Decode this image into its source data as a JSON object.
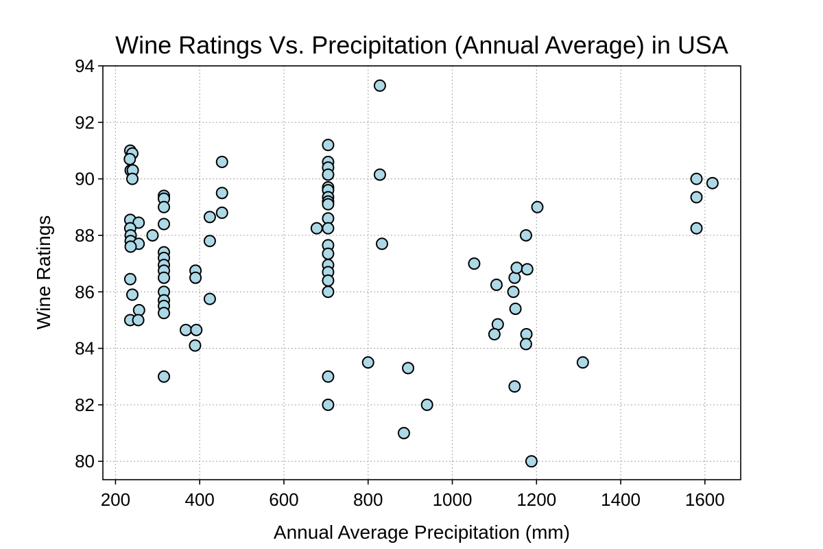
{
  "chart_data": {
    "type": "scatter",
    "title": "Wine Ratings Vs. Precipitation (Annual Average) in USA",
    "xlabel": "Annual Average Precipitation (mm)",
    "ylabel": "Wine Ratings",
    "xlim": [
      170,
      1685
    ],
    "ylim": [
      79.35,
      94
    ],
    "xticks": [
      200,
      400,
      600,
      800,
      1000,
      1200,
      1400,
      1600
    ],
    "yticks": [
      80,
      82,
      84,
      86,
      88,
      90,
      92,
      94
    ],
    "grid": true,
    "marker_color": "#add8e6",
    "marker_edge_color": "#000000",
    "points": [
      {
        "x": 235,
        "y": 91.0
      },
      {
        "x": 240,
        "y": 90.9
      },
      {
        "x": 234,
        "y": 90.7
      },
      {
        "x": 236,
        "y": 90.3
      },
      {
        "x": 241,
        "y": 90.3
      },
      {
        "x": 240,
        "y": 90.0
      },
      {
        "x": 235,
        "y": 88.55
      },
      {
        "x": 255,
        "y": 88.45
      },
      {
        "x": 235,
        "y": 88.25
      },
      {
        "x": 236,
        "y": 88.0
      },
      {
        "x": 236,
        "y": 87.8
      },
      {
        "x": 255,
        "y": 87.7
      },
      {
        "x": 236,
        "y": 87.6
      },
      {
        "x": 235,
        "y": 86.45
      },
      {
        "x": 240,
        "y": 85.9
      },
      {
        "x": 256,
        "y": 85.35
      },
      {
        "x": 235,
        "y": 85.0
      },
      {
        "x": 254,
        "y": 85.0
      },
      {
        "x": 288,
        "y": 88.0
      },
      {
        "x": 315,
        "y": 89.4
      },
      {
        "x": 315,
        "y": 89.3
      },
      {
        "x": 315,
        "y": 89.0
      },
      {
        "x": 315,
        "y": 88.4
      },
      {
        "x": 315,
        "y": 87.4
      },
      {
        "x": 315,
        "y": 87.2
      },
      {
        "x": 315,
        "y": 86.95
      },
      {
        "x": 315,
        "y": 86.75
      },
      {
        "x": 315,
        "y": 86.5
      },
      {
        "x": 315,
        "y": 86.0
      },
      {
        "x": 315,
        "y": 85.7
      },
      {
        "x": 315,
        "y": 85.5
      },
      {
        "x": 315,
        "y": 85.25
      },
      {
        "x": 315,
        "y": 83.0
      },
      {
        "x": 367,
        "y": 84.65
      },
      {
        "x": 390,
        "y": 86.75
      },
      {
        "x": 390,
        "y": 86.5
      },
      {
        "x": 392,
        "y": 84.65
      },
      {
        "x": 389,
        "y": 84.1
      },
      {
        "x": 424,
        "y": 88.65
      },
      {
        "x": 424,
        "y": 87.8
      },
      {
        "x": 424,
        "y": 85.75
      },
      {
        "x": 453,
        "y": 90.6
      },
      {
        "x": 453,
        "y": 89.5
      },
      {
        "x": 453,
        "y": 88.8
      },
      {
        "x": 678,
        "y": 88.25
      },
      {
        "x": 705,
        "y": 91.2
      },
      {
        "x": 705,
        "y": 90.6
      },
      {
        "x": 705,
        "y": 90.4
      },
      {
        "x": 705,
        "y": 90.15
      },
      {
        "x": 705,
        "y": 89.7
      },
      {
        "x": 705,
        "y": 89.6
      },
      {
        "x": 705,
        "y": 89.35
      },
      {
        "x": 705,
        "y": 89.2
      },
      {
        "x": 705,
        "y": 89.1
      },
      {
        "x": 705,
        "y": 88.6
      },
      {
        "x": 705,
        "y": 88.25
      },
      {
        "x": 705,
        "y": 87.65
      },
      {
        "x": 705,
        "y": 87.35
      },
      {
        "x": 705,
        "y": 86.95
      },
      {
        "x": 705,
        "y": 86.7
      },
      {
        "x": 705,
        "y": 86.4
      },
      {
        "x": 705,
        "y": 86.0
      },
      {
        "x": 705,
        "y": 83.0
      },
      {
        "x": 705,
        "y": 82.0
      },
      {
        "x": 800,
        "y": 83.5
      },
      {
        "x": 828,
        "y": 93.3
      },
      {
        "x": 828,
        "y": 90.15
      },
      {
        "x": 833,
        "y": 87.7
      },
      {
        "x": 885,
        "y": 81.0
      },
      {
        "x": 895,
        "y": 83.3
      },
      {
        "x": 940,
        "y": 82.0
      },
      {
        "x": 1052,
        "y": 87.0
      },
      {
        "x": 1105,
        "y": 86.25
      },
      {
        "x": 1108,
        "y": 84.85
      },
      {
        "x": 1100,
        "y": 84.5
      },
      {
        "x": 1145,
        "y": 86.0
      },
      {
        "x": 1148,
        "y": 86.5
      },
      {
        "x": 1150,
        "y": 85.4
      },
      {
        "x": 1153,
        "y": 86.85
      },
      {
        "x": 1148,
        "y": 82.65
      },
      {
        "x": 1175,
        "y": 88.0
      },
      {
        "x": 1178,
        "y": 86.8
      },
      {
        "x": 1176,
        "y": 84.5
      },
      {
        "x": 1175,
        "y": 84.15
      },
      {
        "x": 1188,
        "y": 80.0
      },
      {
        "x": 1202,
        "y": 89.0
      },
      {
        "x": 1310,
        "y": 83.5
      },
      {
        "x": 1580,
        "y": 90.0
      },
      {
        "x": 1580,
        "y": 89.35
      },
      {
        "x": 1580,
        "y": 88.25
      },
      {
        "x": 1618,
        "y": 89.85
      }
    ]
  }
}
